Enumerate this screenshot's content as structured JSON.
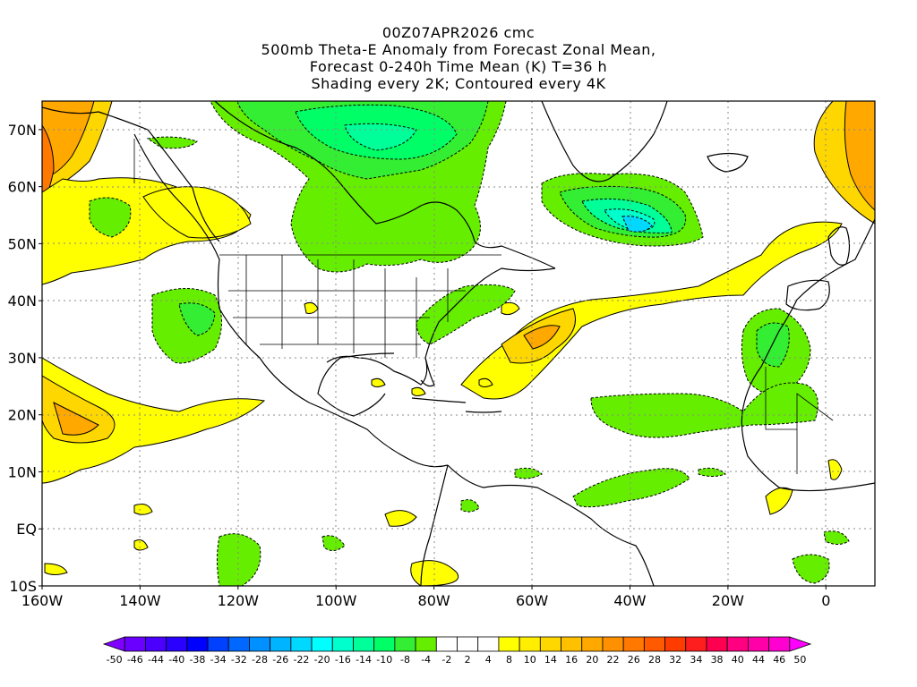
{
  "title": {
    "line1": "00Z07APR2026 cmc",
    "line2": "500mb Theta-E Anomaly from Forecast Zonal Mean,",
    "line3": "Forecast 0-240h Time Mean (K) T=36 h",
    "line4": "Shading every 2K; Contoured every 4K"
  },
  "map": {
    "lon_range": [
      -160,
      10
    ],
    "lat_range": [
      -10,
      75
    ],
    "y_ticks": [
      {
        "lat": 70,
        "label": "70N"
      },
      {
        "lat": 60,
        "label": "60N"
      },
      {
        "lat": 50,
        "label": "50N"
      },
      {
        "lat": 40,
        "label": "40N"
      },
      {
        "lat": 30,
        "label": "30N"
      },
      {
        "lat": 20,
        "label": "20N"
      },
      {
        "lat": 10,
        "label": "10N"
      },
      {
        "lat": 0,
        "label": "EQ"
      },
      {
        "lat": -10,
        "label": "10S"
      }
    ],
    "x_ticks": [
      {
        "lon": -160,
        "label": "160W"
      },
      {
        "lon": -140,
        "label": "140W"
      },
      {
        "lon": -120,
        "label": "120W"
      },
      {
        "lon": -100,
        "label": "100W"
      },
      {
        "lon": -80,
        "label": "80W"
      },
      {
        "lon": -60,
        "label": "60W"
      },
      {
        "lon": -40,
        "label": "40W"
      },
      {
        "lon": -20,
        "label": "20W"
      },
      {
        "lon": 0,
        "label": "0"
      }
    ],
    "anomaly_regions": [
      {
        "name": "hudson-bay-negative",
        "value": -8,
        "lon": -93,
        "lat": 62
      },
      {
        "name": "labrador-sea-negative",
        "value": -16,
        "lon": -39,
        "lat": 52
      },
      {
        "name": "canary-negative",
        "value": -10,
        "lon": -13,
        "lat": 32
      },
      {
        "name": "alaska-positive",
        "value": 12,
        "lon": -155,
        "lat": 62
      },
      {
        "name": "europe-positive",
        "value": 12,
        "lon": 5,
        "lat": 68
      },
      {
        "name": "subtropical-atlantic-positive",
        "value": 10,
        "lon": -58,
        "lat": 33
      },
      {
        "name": "eastern-pacific-positive",
        "value": 10,
        "lon": -145,
        "lat": 20
      }
    ]
  },
  "colorbar": {
    "labels": [
      "-50",
      "-46",
      "-44",
      "-40",
      "-38",
      "-34",
      "-32",
      "-28",
      "-26",
      "-22",
      "-20",
      "-16",
      "-14",
      "-10",
      "-8",
      "-4",
      "-2",
      "2",
      "4",
      "8",
      "10",
      "14",
      "16",
      "20",
      "22",
      "26",
      "28",
      "32",
      "34",
      "38",
      "40",
      "44",
      "46",
      "50"
    ],
    "colors": [
      "#8000ff",
      "#6a00ff",
      "#4b00ff",
      "#2a00ff",
      "#0000ff",
      "#0040ff",
      "#0068ff",
      "#0090ff",
      "#00b4ff",
      "#00d8ff",
      "#00ffff",
      "#00ffcc",
      "#00ff99",
      "#00ff66",
      "#33ee33",
      "#66ee00",
      "#ffffff",
      "#ffffff",
      "#ffffff",
      "#ffff00",
      "#ffee00",
      "#ffd700",
      "#ffc000",
      "#ffa800",
      "#ff9000",
      "#ff7800",
      "#ff5a00",
      "#ff3c00",
      "#ff1e1e",
      "#ff0050",
      "#ff0080",
      "#ff00a8",
      "#ff00d0",
      "#ff00ff"
    ]
  }
}
